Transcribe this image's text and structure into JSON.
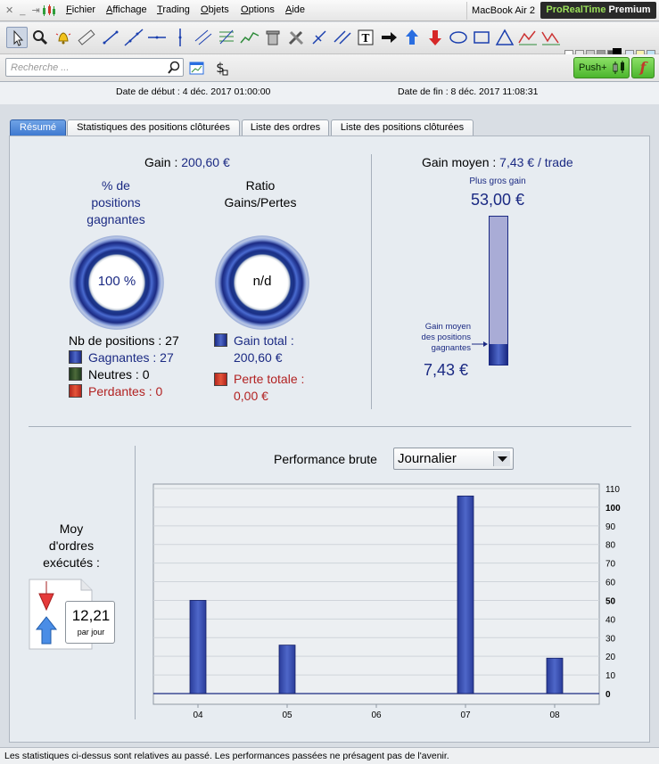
{
  "menubar": {
    "window_controls": "✕ _ ⇥",
    "menus": [
      "Fichier",
      "Affichage",
      "Trading",
      "Objets",
      "Options",
      "Aide"
    ],
    "machine": "MacBook Air 2",
    "brand": "ProRealTime",
    "edition": "Premium"
  },
  "search": {
    "placeholder": "Recherche ..."
  },
  "push_button": "Push+",
  "f_button": "f",
  "dates": {
    "start": "Date de début : 4 déc. 2017 01:00:00",
    "end": "Date de fin : 8 déc. 2017 11:08:31"
  },
  "tabs": [
    {
      "label": "Résumé",
      "active": true
    },
    {
      "label": "Statistiques des positions clôturées",
      "active": false
    },
    {
      "label": "Liste des ordres",
      "active": false
    },
    {
      "label": "Liste des positions clôturées",
      "active": false
    }
  ],
  "summary": {
    "gain_label": "Gain : ",
    "gain_value": "200,60 €",
    "pct_title_1": "% de",
    "pct_title_2": "positions",
    "pct_title_3": "gagnantes",
    "pct_value": "100 %",
    "ratio_title_1": "Ratio",
    "ratio_title_2": "Gains/Pertes",
    "ratio_value": "n/d",
    "nb_positions": "Nb de positions : 27",
    "gagnantes": "Gagnantes : 27",
    "neutres": "Neutres : 0",
    "perdantes": "Perdantes : 0",
    "gain_total_label": "Gain total :",
    "gain_total_value": "200,60 €",
    "perte_totale_label": "Perte totale :",
    "perte_totale_value": "0,00 €",
    "gain_moyen_label": "Gain moyen : ",
    "gain_moyen_value": "7,43 € / trade",
    "plus_gros_gain_label": "Plus gros gain",
    "plus_gros_gain_value": "53,00 €",
    "gain_moyen_pos_1": "Gain moyen",
    "gain_moyen_pos_2": "des positions",
    "gain_moyen_pos_3": "gagnantes",
    "gain_moyen_pos_value": "7,43 €",
    "bar_fill_fraction": 0.14
  },
  "orders": {
    "title_1": "Moy",
    "title_2": "d'ordres",
    "title_3": "exécutés :",
    "value": "12,21",
    "unit": "par jour"
  },
  "performance": {
    "label": "Performance brute",
    "period": "Journalier"
  },
  "chart_data": {
    "type": "bar",
    "categories": [
      "04",
      "05",
      "06",
      "07",
      "08"
    ],
    "values": [
      50,
      26,
      0,
      106,
      19
    ],
    "ylim": [
      0,
      110
    ],
    "yticks": [
      0,
      10,
      20,
      30,
      40,
      50,
      60,
      70,
      80,
      90,
      100,
      110
    ],
    "bold_ticks": [
      0,
      50,
      100
    ],
    "grid": true,
    "colors": {
      "bar": "#2a3c9a",
      "bar_light": "#4e67c9",
      "axis": "#1b2a83"
    }
  },
  "footer": "Les statistiques ci-dessus sont relatives au passé. Les performances passées ne présagent pas de l'avenir."
}
